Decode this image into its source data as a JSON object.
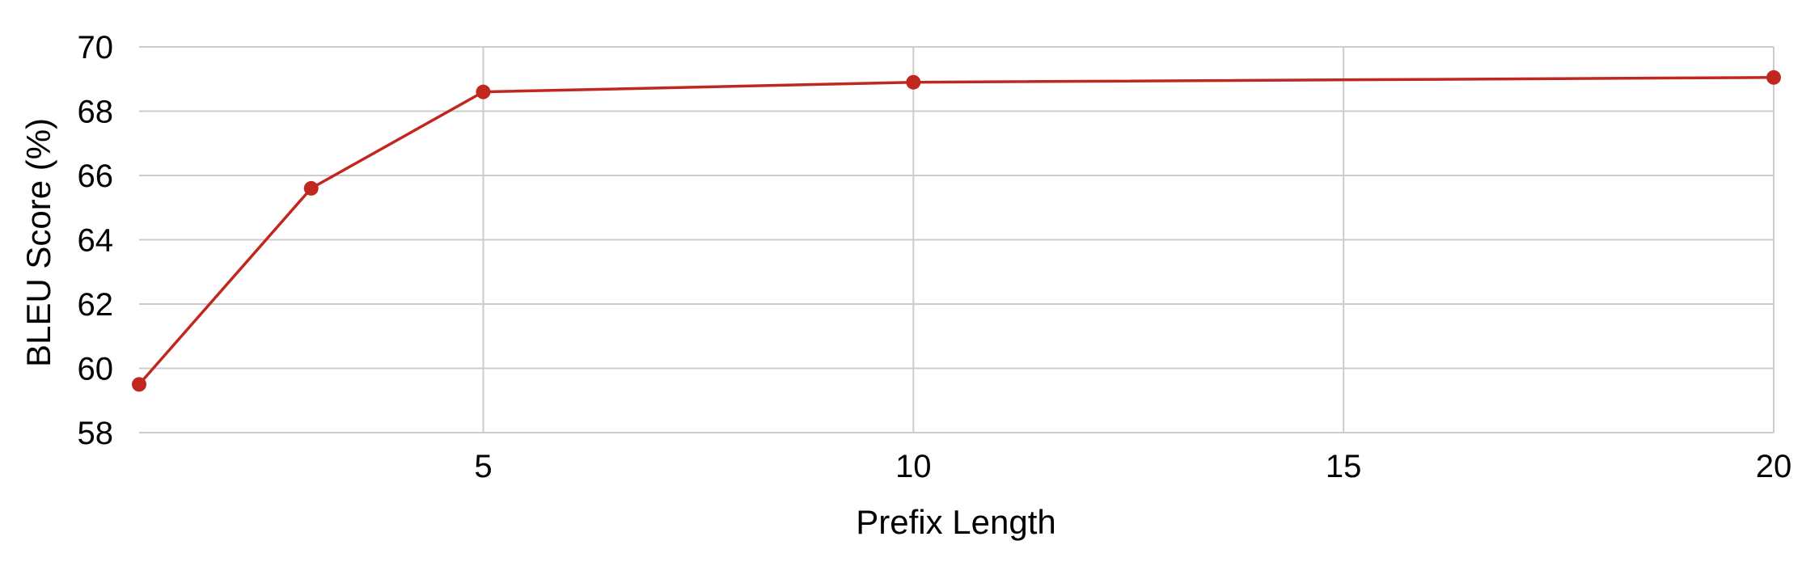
{
  "chart_data": {
    "type": "line",
    "title": "",
    "xlabel": "Prefix Length",
    "ylabel": "BLEU Score (%)",
    "xlim": [
      1,
      20
    ],
    "ylim": [
      58,
      70
    ],
    "x_ticks": [
      5,
      10,
      15,
      20
    ],
    "y_ticks": [
      58,
      60,
      62,
      64,
      66,
      68,
      70
    ],
    "grid": true,
    "legend": "none",
    "series": [
      {
        "color": "#c0281f",
        "points": [
          {
            "x": 1,
            "y": 59.5
          },
          {
            "x": 3,
            "y": 65.6
          },
          {
            "x": 5,
            "y": 68.6
          },
          {
            "x": 10,
            "y": 68.9
          },
          {
            "x": 20,
            "y": 69.05
          }
        ]
      }
    ]
  }
}
